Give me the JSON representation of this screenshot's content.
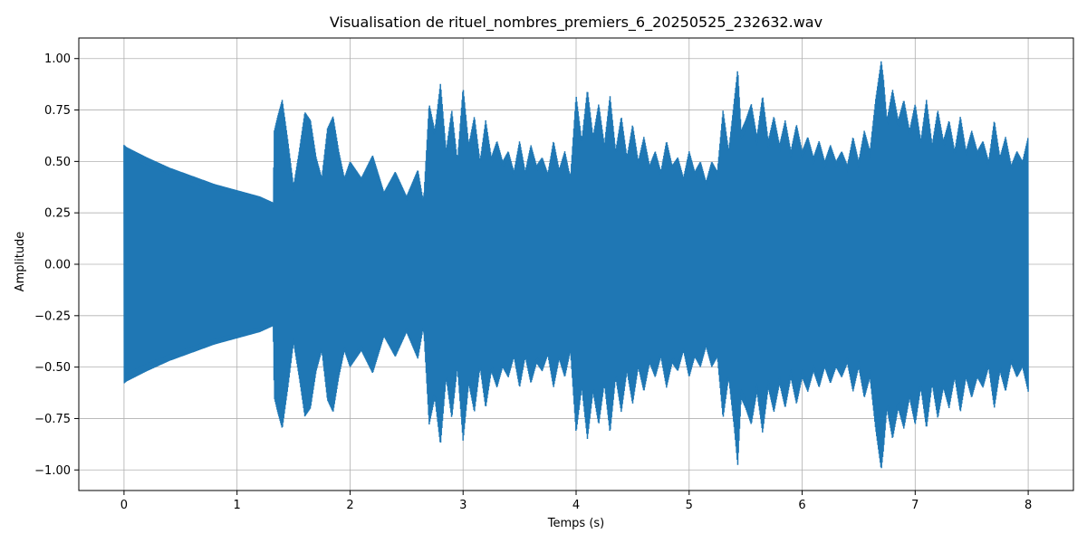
{
  "chart_data": {
    "type": "line",
    "title": "Visualisation de rituel_nombres_premiers_6_20250525_232632.wav",
    "xlabel": "Temps (s)",
    "ylabel": "Amplitude",
    "xlim": [
      -0.4,
      8.4
    ],
    "ylim": [
      -1.1,
      1.1
    ],
    "x_ticks": [
      0,
      1,
      2,
      3,
      4,
      5,
      6,
      7,
      8
    ],
    "x_tick_labels": [
      "0",
      "1",
      "2",
      "3",
      "4",
      "5",
      "6",
      "7",
      "8"
    ],
    "y_ticks": [
      -1.0,
      -0.75,
      -0.5,
      -0.25,
      0.0,
      0.25,
      0.5,
      0.75,
      1.0
    ],
    "y_tick_labels": [
      "−1.00",
      "−0.75",
      "−0.50",
      "−0.25",
      "0.00",
      "0.25",
      "0.50",
      "0.75",
      "1.00"
    ],
    "grid": true,
    "series": [
      {
        "color": "#1f77b4",
        "envelope_x": [
          0.0,
          0.02,
          0.2,
          0.4,
          0.6,
          0.8,
          1.0,
          1.2,
          1.32,
          1.33,
          1.36,
          1.4,
          1.45,
          1.5,
          1.55,
          1.6,
          1.65,
          1.7,
          1.75,
          1.8,
          1.85,
          1.9,
          1.95,
          2.0,
          2.1,
          2.2,
          2.3,
          2.4,
          2.5,
          2.6,
          2.65,
          2.7,
          2.75,
          2.8,
          2.85,
          2.9,
          2.95,
          3.0,
          3.05,
          3.1,
          3.15,
          3.2,
          3.25,
          3.3,
          3.35,
          3.4,
          3.45,
          3.5,
          3.55,
          3.6,
          3.65,
          3.7,
          3.75,
          3.8,
          3.85,
          3.9,
          3.95,
          4.0,
          4.05,
          4.1,
          4.15,
          4.2,
          4.25,
          4.3,
          4.35,
          4.4,
          4.45,
          4.5,
          4.55,
          4.6,
          4.65,
          4.7,
          4.75,
          4.8,
          4.85,
          4.9,
          4.95,
          5.0,
          5.05,
          5.1,
          5.15,
          5.2,
          5.25,
          5.3,
          5.35,
          5.4,
          5.43,
          5.46,
          5.5,
          5.55,
          5.6,
          5.65,
          5.7,
          5.75,
          5.8,
          5.85,
          5.9,
          5.95,
          6.0,
          6.05,
          6.1,
          6.15,
          6.2,
          6.25,
          6.3,
          6.35,
          6.4,
          6.45,
          6.5,
          6.55,
          6.6,
          6.65,
          6.7,
          6.72,
          6.75,
          6.8,
          6.85,
          6.9,
          6.95,
          7.0,
          7.05,
          7.1,
          7.15,
          7.2,
          7.25,
          7.3,
          7.35,
          7.4,
          7.45,
          7.5,
          7.55,
          7.6,
          7.65,
          7.7,
          7.75,
          7.8,
          7.85,
          7.9,
          7.95,
          8.0
        ],
        "envelope_max": [
          0.58,
          0.57,
          0.52,
          0.47,
          0.43,
          0.39,
          0.36,
          0.33,
          0.3,
          0.65,
          0.72,
          0.8,
          0.6,
          0.38,
          0.55,
          0.74,
          0.7,
          0.52,
          0.42,
          0.66,
          0.72,
          0.55,
          0.42,
          0.5,
          0.42,
          0.53,
          0.35,
          0.45,
          0.33,
          0.46,
          0.3,
          0.78,
          0.65,
          0.88,
          0.55,
          0.75,
          0.5,
          0.86,
          0.58,
          0.72,
          0.5,
          0.7,
          0.52,
          0.6,
          0.5,
          0.55,
          0.45,
          0.6,
          0.45,
          0.58,
          0.48,
          0.52,
          0.44,
          0.6,
          0.46,
          0.55,
          0.42,
          0.82,
          0.6,
          0.85,
          0.62,
          0.78,
          0.58,
          0.82,
          0.55,
          0.72,
          0.52,
          0.68,
          0.5,
          0.62,
          0.48,
          0.55,
          0.45,
          0.6,
          0.48,
          0.52,
          0.42,
          0.55,
          0.45,
          0.5,
          0.4,
          0.5,
          0.45,
          0.75,
          0.55,
          0.8,
          0.95,
          0.65,
          0.7,
          0.78,
          0.62,
          0.82,
          0.6,
          0.72,
          0.58,
          0.7,
          0.55,
          0.68,
          0.55,
          0.62,
          0.52,
          0.6,
          0.5,
          0.58,
          0.5,
          0.55,
          0.48,
          0.62,
          0.5,
          0.65,
          0.55,
          0.8,
          0.99,
          0.9,
          0.7,
          0.85,
          0.7,
          0.8,
          0.65,
          0.78,
          0.6,
          0.8,
          0.58,
          0.75,
          0.6,
          0.7,
          0.55,
          0.72,
          0.55,
          0.65,
          0.55,
          0.6,
          0.5,
          0.7,
          0.52,
          0.62,
          0.48,
          0.55,
          0.5,
          0.62
        ],
        "envelope_min": [
          -0.58,
          -0.57,
          -0.52,
          -0.47,
          -0.43,
          -0.39,
          -0.36,
          -0.33,
          -0.3,
          -0.65,
          -0.72,
          -0.8,
          -0.6,
          -0.38,
          -0.55,
          -0.74,
          -0.7,
          -0.52,
          -0.42,
          -0.66,
          -0.72,
          -0.55,
          -0.42,
          -0.5,
          -0.42,
          -0.53,
          -0.35,
          -0.45,
          -0.33,
          -0.46,
          -0.3,
          -0.78,
          -0.65,
          -0.88,
          -0.55,
          -0.75,
          -0.5,
          -0.86,
          -0.58,
          -0.72,
          -0.5,
          -0.7,
          -0.52,
          -0.6,
          -0.5,
          -0.55,
          -0.45,
          -0.6,
          -0.45,
          -0.58,
          -0.48,
          -0.52,
          -0.44,
          -0.6,
          -0.46,
          -0.55,
          -0.42,
          -0.82,
          -0.6,
          -0.85,
          -0.62,
          -0.78,
          -0.58,
          -0.82,
          -0.55,
          -0.72,
          -0.52,
          -0.68,
          -0.5,
          -0.62,
          -0.48,
          -0.55,
          -0.45,
          -0.6,
          -0.48,
          -0.52,
          -0.42,
          -0.55,
          -0.45,
          -0.5,
          -0.4,
          -0.5,
          -0.45,
          -0.75,
          -0.55,
          -0.8,
          -0.98,
          -0.65,
          -0.7,
          -0.78,
          -0.62,
          -0.82,
          -0.6,
          -0.72,
          -0.58,
          -0.7,
          -0.55,
          -0.68,
          -0.55,
          -0.62,
          -0.52,
          -0.6,
          -0.5,
          -0.58,
          -0.5,
          -0.55,
          -0.48,
          -0.62,
          -0.5,
          -0.65,
          -0.55,
          -0.8,
          -1.0,
          -0.9,
          -0.7,
          -0.85,
          -0.7,
          -0.8,
          -0.65,
          -0.78,
          -0.6,
          -0.8,
          -0.58,
          -0.75,
          -0.6,
          -0.7,
          -0.55,
          -0.72,
          -0.55,
          -0.65,
          -0.55,
          -0.6,
          -0.5,
          -0.7,
          -0.52,
          -0.62,
          -0.48,
          -0.55,
          -0.5,
          -0.62
        ]
      }
    ]
  }
}
